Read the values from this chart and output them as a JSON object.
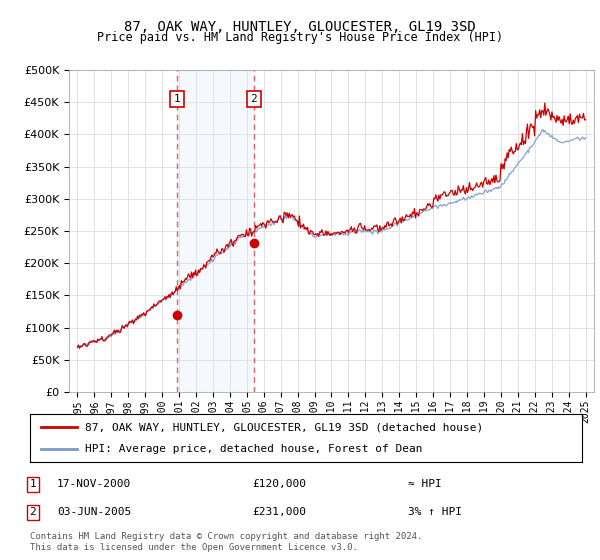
{
  "title": "87, OAK WAY, HUNTLEY, GLOUCESTER, GL19 3SD",
  "subtitle": "Price paid vs. HM Land Registry's House Price Index (HPI)",
  "legend_line1": "87, OAK WAY, HUNTLEY, GLOUCESTER, GL19 3SD (detached house)",
  "legend_line2": "HPI: Average price, detached house, Forest of Dean",
  "table_row1_label": "1",
  "table_row1_date": "17-NOV-2000",
  "table_row1_price": "£120,000",
  "table_row1_hpi": "≈ HPI",
  "table_row2_label": "2",
  "table_row2_date": "03-JUN-2005",
  "table_row2_price": "£231,000",
  "table_row2_hpi": "3% ↑ HPI",
  "footer": "Contains HM Land Registry data © Crown copyright and database right 2024.\nThis data is licensed under the Open Government Licence v3.0.",
  "sale1_year": 2000.88,
  "sale1_price": 120000,
  "sale2_year": 2005.42,
  "sale2_price": 231000,
  "hpi_color": "#7799cc",
  "price_color": "#cc0000",
  "vline_color": "#dd6666",
  "shade_color": "#ddeeff",
  "ylim_min": 0,
  "ylim_max": 500000,
  "xlim_min": 1994.5,
  "xlim_max": 2025.5,
  "yticks": [
    0,
    50000,
    100000,
    150000,
    200000,
    250000,
    300000,
    350000,
    400000,
    450000,
    500000
  ],
  "xticks": [
    1995,
    1996,
    1997,
    1998,
    1999,
    2000,
    2001,
    2002,
    2003,
    2004,
    2005,
    2006,
    2007,
    2008,
    2009,
    2010,
    2011,
    2012,
    2013,
    2014,
    2015,
    2016,
    2017,
    2018,
    2019,
    2020,
    2021,
    2022,
    2023,
    2024,
    2025
  ]
}
